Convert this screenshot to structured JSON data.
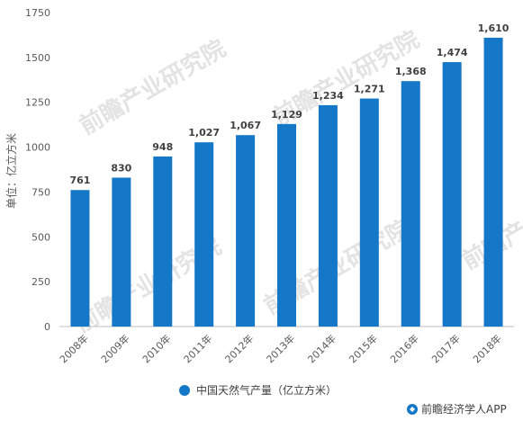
{
  "chart_data": {
    "type": "bar",
    "categories": [
      "2008年",
      "2009年",
      "2010年",
      "2011年",
      "2012年",
      "2013年",
      "2014年",
      "2015年",
      "2016年",
      "2017年",
      "2018年"
    ],
    "series": [
      {
        "name": "中国天然气产量（亿立方米）",
        "values": [
          761,
          830,
          948,
          1027,
          1067,
          1129,
          1234,
          1271,
          1368,
          1474,
          1610
        ],
        "labels": [
          "761",
          "830",
          "948",
          "1,027",
          "1,067",
          "1,129",
          "1,234",
          "1,271",
          "1,368",
          "1,474",
          "1,610"
        ],
        "color": "#1577c7"
      }
    ],
    "ylabel": "单位：亿立方米",
    "yticks": [
      0,
      250,
      500,
      750,
      1000,
      1250,
      1500,
      1750
    ],
    "ylim": [
      0,
      1750
    ],
    "grid": false,
    "legend_position": "bottom-center"
  },
  "branding": {
    "text": "前瞻经济学人APP",
    "icon_color": "#1577c7",
    "watermark": "前瞻产业研究院"
  },
  "colors": {
    "axis": "#bfbfbf",
    "bar": "#1577c7"
  }
}
